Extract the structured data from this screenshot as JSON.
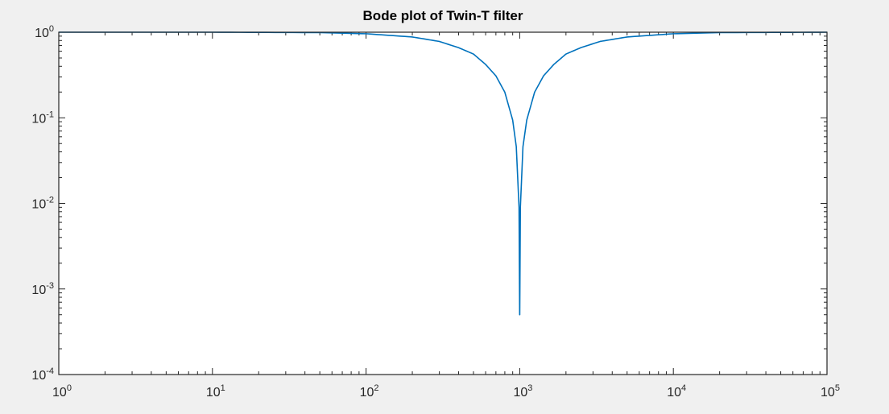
{
  "chart_data": {
    "type": "line",
    "title": "Bode plot of Twin-T filter",
    "xlabel": "",
    "ylabel": "",
    "xscale": "log",
    "yscale": "log",
    "xlim": [
      1,
      100000
    ],
    "ylim": [
      0.0001,
      1
    ],
    "grid": false,
    "box": true,
    "x_ticks": [
      {
        "base": "10",
        "exp": "0",
        "value": 1
      },
      {
        "base": "10",
        "exp": "1",
        "value": 10
      },
      {
        "base": "10",
        "exp": "2",
        "value": 100
      },
      {
        "base": "10",
        "exp": "3",
        "value": 1000
      },
      {
        "base": "10",
        "exp": "4",
        "value": 10000
      },
      {
        "base": "10",
        "exp": "5",
        "value": 100000
      }
    ],
    "y_ticks": [
      {
        "base": "10",
        "exp": "0",
        "value": 1
      },
      {
        "base": "10",
        "exp": "-1",
        "value": 0.1
      },
      {
        "base": "10",
        "exp": "-2",
        "value": 0.01
      },
      {
        "base": "10",
        "exp": "-3",
        "value": 0.001
      },
      {
        "base": "10",
        "exp": "-4",
        "value": 0.0001
      }
    ],
    "series": [
      {
        "color": "#0072bd",
        "x": [
          1,
          10,
          50,
          100,
          200,
          300,
          400,
          500,
          600,
          700,
          800,
          900,
          950,
          990,
          999.5,
          1000,
          1000.5,
          1010,
          1050,
          1111,
          1250,
          1429,
          1667,
          2000,
          2500,
          3333,
          5000,
          10000,
          20000,
          100000
        ],
        "y": [
          1.0,
          1.0,
          0.99,
          0.96,
          0.88,
          0.78,
          0.66,
          0.556,
          0.42,
          0.309,
          0.199,
          0.094,
          0.046,
          0.009,
          0.0005,
          0.0005,
          0.0005,
          0.009,
          0.046,
          0.094,
          0.199,
          0.309,
          0.42,
          0.556,
          0.66,
          0.78,
          0.88,
          0.96,
          0.99,
          1.0
        ]
      }
    ]
  }
}
